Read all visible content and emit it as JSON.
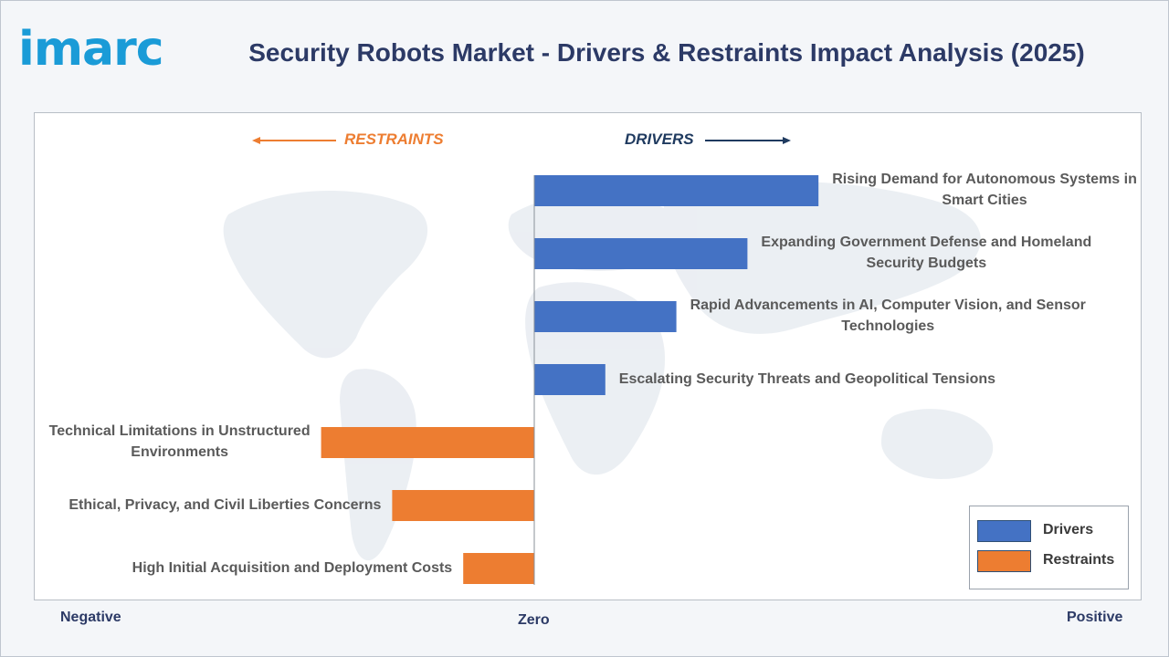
{
  "header": {
    "logo_text": "imarc",
    "title": "Security Robots Market - Drivers & Restraints Impact Analysis (2025)"
  },
  "colors": {
    "drivers": "#4472c4",
    "restraints": "#ed7d31",
    "title": "#2c3a66",
    "logo": "#1a9bd7"
  },
  "chart_data": {
    "type": "bar",
    "orientation": "horizontal-diverging",
    "direction_labels": {
      "left": "RESTRAINTS",
      "right": "DRIVERS"
    },
    "axis_labels": {
      "left": "Negative",
      "center": "Zero",
      "right": "Positive"
    },
    "xlim": [
      -6,
      8
    ],
    "grid": false,
    "legend": {
      "placement": "bottom-right",
      "entries": [
        "Drivers",
        "Restraints"
      ]
    },
    "series": [
      {
        "name": "Drivers",
        "categories": [
          "Rising Demand for Autonomous Systems in Smart Cities",
          "Expanding Government Defense and Homeland Security Budgets",
          "Rapid Advancements in AI, Computer Vision, and Sensor Technologies",
          "Escalating Security Threats and Geopolitical Tensions"
        ],
        "values": [
          8,
          6,
          4,
          2
        ]
      },
      {
        "name": "Restraints",
        "categories": [
          "Technical Limitations in Unstructured Environments",
          "Ethical, Privacy, and Civil Liberties Concerns",
          "High Initial Acquisition and Deployment Costs"
        ],
        "values": [
          -6,
          -4,
          -2
        ]
      }
    ],
    "label_lines": [
      [
        "Rising Demand for Autonomous Systems in",
        "Smart Cities"
      ],
      [
        "Expanding Government Defense and Homeland",
        "Security Budgets"
      ],
      [
        "Rapid Advancements in AI, Computer Vision, and Sensor",
        "Technologies"
      ],
      [
        "Escalating Security Threats and Geopolitical Tensions"
      ],
      [
        "Technical Limitations in Unstructured",
        "Environments"
      ],
      [
        "Ethical, Privacy, and Civil Liberties Concerns"
      ],
      [
        "High Initial Acquisition and Deployment Costs"
      ]
    ]
  }
}
